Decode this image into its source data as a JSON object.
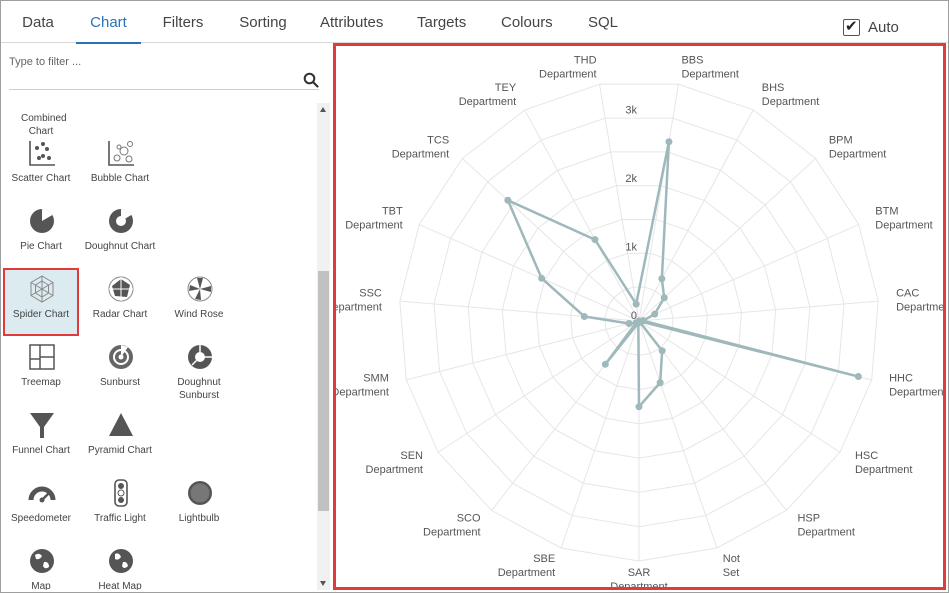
{
  "tabs": [
    {
      "label": "Data",
      "active": false
    },
    {
      "label": "Chart",
      "active": true
    },
    {
      "label": "Filters",
      "active": false
    },
    {
      "label": "Sorting",
      "active": false
    },
    {
      "label": "Attributes",
      "active": false
    },
    {
      "label": "Targets",
      "active": false
    },
    {
      "label": "Colours",
      "active": false
    },
    {
      "label": "SQL",
      "active": false
    }
  ],
  "auto": {
    "label": "Auto",
    "checked": true
  },
  "filter": {
    "placeholder": "Type to filter ..."
  },
  "chart_types": [
    {
      "label": "Combined Chart",
      "icon": "combined-chart-icon",
      "selected": false
    },
    {
      "label": "Scatter Chart",
      "icon": "scatter-chart-icon",
      "selected": false
    },
    {
      "label": "Bubble Chart",
      "icon": "bubble-chart-icon",
      "selected": false
    },
    {
      "label": "Pie Chart",
      "icon": "pie-chart-icon",
      "selected": false
    },
    {
      "label": "Doughnut Chart",
      "icon": "doughnut-chart-icon",
      "selected": false
    },
    {
      "label": "Spider Chart",
      "icon": "spider-chart-icon",
      "selected": true
    },
    {
      "label": "Radar Chart",
      "icon": "radar-chart-icon",
      "selected": false
    },
    {
      "label": "Wind Rose",
      "icon": "wind-rose-icon",
      "selected": false
    },
    {
      "label": "Treemap",
      "icon": "treemap-icon",
      "selected": false
    },
    {
      "label": "Sunburst",
      "icon": "sunburst-icon",
      "selected": false
    },
    {
      "label": "Doughnut Sunburst",
      "icon": "doughnut-sunburst-icon",
      "selected": false
    },
    {
      "label": "Funnel Chart",
      "icon": "funnel-chart-icon",
      "selected": false
    },
    {
      "label": "Pyramid Chart",
      "icon": "pyramid-chart-icon",
      "selected": false
    },
    {
      "label": "Speedometer",
      "icon": "speedometer-icon",
      "selected": false
    },
    {
      "label": "Traffic Light",
      "icon": "traffic-light-icon",
      "selected": false
    },
    {
      "label": "Lightbulb",
      "icon": "lightbulb-icon",
      "selected": false
    },
    {
      "label": "Map",
      "icon": "map-icon",
      "selected": false
    },
    {
      "label": "Heat Map",
      "icon": "heat-map-icon",
      "selected": false
    }
  ],
  "colors": {
    "accent": "#2a73b8",
    "highlight": "#e23a3a",
    "series": "#9fb8bb",
    "grid": "#e6e6e6"
  },
  "chart_data": {
    "type": "spider",
    "title": "",
    "categories": [
      "BBS Department",
      "BHS Department",
      "BPM Department",
      "BTM Department",
      "CAC Department",
      "HHC Department",
      "HSC Department",
      "HSP Department",
      "Not Set",
      "SAR Department",
      "SBE Department",
      "SCO Department",
      "SEN Department",
      "SMM Department",
      "SSC Department",
      "TBT Department",
      "TCS Department",
      "TEY Department",
      "THD Department"
    ],
    "series": [
      {
        "values": [
          2650,
          700,
          500,
          250,
          60,
          3300,
          0,
          550,
          950,
          1250,
          30,
          800,
          50,
          150,
          800,
          1550,
          2600,
          1350,
          250
        ]
      }
    ],
    "ylim": [
      0,
      3500
    ],
    "ticks": [
      "0",
      "1k",
      "2k",
      "3k"
    ],
    "tick_values": [
      0,
      1000,
      2000,
      3000
    ],
    "grid": true,
    "legend": "none"
  }
}
